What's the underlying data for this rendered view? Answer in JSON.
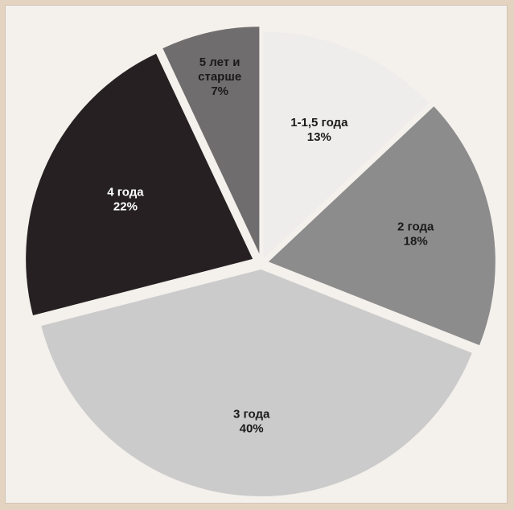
{
  "chart_data": {
    "type": "pie",
    "categories": [
      "1-1,5 года",
      "2 года",
      "3 года",
      "4 года",
      "5 лет и старше"
    ],
    "values": [
      13,
      18,
      40,
      22,
      7
    ],
    "label_lines": [
      [
        "1-1,5 года",
        "13%"
      ],
      [
        "2 года",
        "18%"
      ],
      [
        "3 года",
        "40%"
      ],
      [
        "4 года",
        "22%"
      ],
      [
        "5 лет и",
        "старше",
        "7%"
      ]
    ],
    "colors": [
      "#efedeb",
      "#8c8c8c",
      "#cbcbcb",
      "#262022",
      "#6f6d6d"
    ],
    "label_colors": [
      "#1a1a1a",
      "#1a1a1a",
      "#1a1a1a",
      "#ffffff",
      "#1a1a1a"
    ],
    "start_angle_deg": 0,
    "direction": "clockwise",
    "exploded": true,
    "legend": "none"
  }
}
